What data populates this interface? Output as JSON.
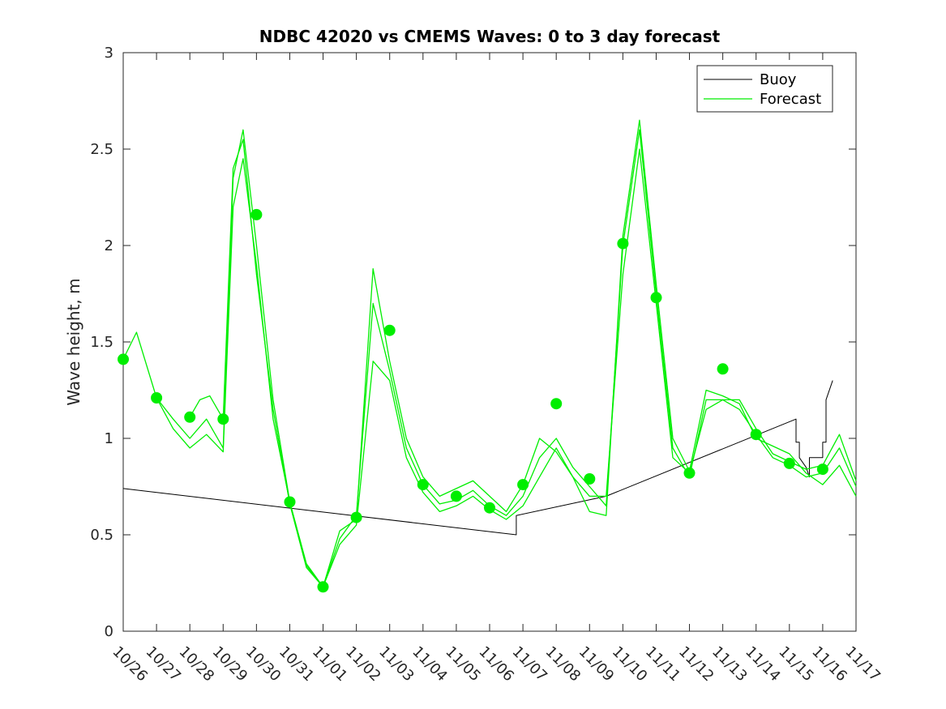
{
  "chart_data": {
    "type": "line",
    "title": "NDBC 42020 vs CMEMS Waves: 0 to 3 day forecast",
    "xlabel": "",
    "ylabel": "Wave height, m",
    "ylim": [
      0,
      3
    ],
    "xlim": [
      0,
      22
    ],
    "yticks": [
      0,
      0.5,
      1,
      1.5,
      2,
      2.5,
      3
    ],
    "ytick_labels": [
      "0",
      "0.5",
      "1",
      "1.5",
      "2",
      "2.5",
      "3"
    ],
    "xtick_labels": [
      "10/26",
      "10/27",
      "10/28",
      "10/29",
      "10/30",
      "10/31",
      "11/01",
      "11/02",
      "11/03",
      "11/04",
      "11/05",
      "11/06",
      "11/07",
      "11/08",
      "11/09",
      "11/10",
      "11/11",
      "11/12",
      "11/13",
      "11/14",
      "11/15",
      "11/16",
      "11/17"
    ],
    "legend": {
      "position": "top-right",
      "entries": [
        "Buoy",
        "Forecast"
      ]
    },
    "colors": {
      "buoy": "#000000",
      "forecast": "#00ee00",
      "markers": "#00ee00"
    },
    "series": [
      {
        "name": "Buoy",
        "x": [
          0,
          11.8,
          11.8,
          14.5,
          20.2,
          20.2,
          20.3,
          20.3,
          20.5,
          20.6,
          20.6,
          21.0,
          21.0,
          21.1,
          21.1,
          21.3
        ],
        "values": [
          0.74,
          0.5,
          0.6,
          0.7,
          1.1,
          0.98,
          0.98,
          0.9,
          0.85,
          0.8,
          0.9,
          0.9,
          0.98,
          0.98,
          1.2,
          1.3
        ]
      },
      {
        "name": "Forecast",
        "x": [
          0,
          0.4,
          1,
          1.5,
          2,
          2.5,
          3,
          3.3,
          3.6,
          4,
          4.5,
          5,
          5.5,
          6,
          6.5,
          7,
          7.5,
          8,
          8.5,
          9,
          9.5,
          10,
          10.5,
          11,
          11.5,
          12,
          12.5,
          13,
          13.5,
          14,
          14.5,
          15,
          15.5,
          16,
          16.5,
          17,
          17.5,
          18,
          18.5,
          19,
          19.5,
          20,
          20.5,
          21,
          21.5,
          22
        ],
        "values": [
          1.41,
          1.55,
          1.21,
          1.05,
          0.95,
          1.02,
          0.93,
          2.2,
          2.45,
          1.9,
          1.1,
          0.67,
          0.35,
          0.23,
          0.45,
          0.55,
          1.4,
          1.3,
          0.9,
          0.72,
          0.62,
          0.65,
          0.7,
          0.63,
          0.58,
          0.65,
          0.8,
          0.95,
          0.8,
          0.7,
          0.7,
          1.85,
          2.5,
          1.7,
          0.9,
          0.82,
          1.15,
          1.2,
          1.15,
          1.02,
          0.9,
          0.86,
          0.8,
          0.82,
          0.95,
          0.75
        ]
      },
      {
        "name": "Forecast run 2",
        "x": [
          1,
          1.5,
          2,
          2.5,
          3,
          3.3,
          3.6,
          4,
          4.5,
          5,
          5.5,
          6,
          6.5,
          7,
          7.5,
          8,
          8.5,
          9,
          9.5,
          10,
          10.5,
          11,
          11.5,
          12,
          12.5,
          13,
          13.5,
          14,
          14.5,
          15,
          15.5,
          16,
          16.5,
          17,
          17.5,
          18,
          18.5,
          19,
          19.5,
          20,
          20.5,
          21,
          21.5,
          22
        ],
        "values": [
          1.21,
          1.1,
          1.0,
          1.1,
          0.95,
          2.35,
          2.6,
          2.0,
          1.2,
          0.67,
          0.34,
          0.23,
          0.48,
          0.6,
          1.7,
          1.35,
          0.95,
          0.76,
          0.66,
          0.68,
          0.73,
          0.65,
          0.6,
          0.7,
          0.9,
          1.0,
          0.85,
          0.75,
          0.65,
          2.0,
          2.6,
          1.75,
          0.95,
          0.8,
          1.2,
          1.2,
          1.2,
          1.05,
          0.92,
          0.88,
          0.84,
          0.86,
          1.02,
          0.78
        ]
      },
      {
        "name": "Forecast run 3",
        "x": [
          2,
          2.3,
          2.6,
          3,
          3.3,
          3.6,
          4,
          4.5,
          5,
          5.5,
          6,
          6.5,
          7,
          7.5,
          8,
          8.5,
          9,
          9.5,
          10,
          10.5,
          11,
          11.5,
          12,
          12.5,
          13,
          13.5,
          14,
          14.5,
          15,
          15.5,
          16,
          16.5,
          17,
          17.5,
          18,
          18.5,
          19,
          19.5,
          20,
          20.5,
          21,
          21.5,
          22
        ],
        "values": [
          1.11,
          1.2,
          1.22,
          1.1,
          2.4,
          2.55,
          1.85,
          1.15,
          0.66,
          0.33,
          0.23,
          0.52,
          0.58,
          1.88,
          1.4,
          1.0,
          0.8,
          0.7,
          0.74,
          0.78,
          0.7,
          0.62,
          0.76,
          1.0,
          0.93,
          0.8,
          0.62,
          0.6,
          2.05,
          2.65,
          1.8,
          1.0,
          0.83,
          1.25,
          1.22,
          1.18,
          1.0,
          0.96,
          0.92,
          0.82,
          0.76,
          0.86,
          0.7
        ]
      }
    ],
    "markers": {
      "x": [
        0,
        1,
        2,
        3,
        4,
        5,
        6,
        7,
        8,
        9,
        10,
        11,
        12,
        13,
        14,
        15,
        16,
        17,
        18,
        19,
        20,
        21
      ],
      "values": [
        1.41,
        1.21,
        1.11,
        1.1,
        2.16,
        0.67,
        0.23,
        0.59,
        1.56,
        0.76,
        0.7,
        0.64,
        0.76,
        1.18,
        0.79,
        2.01,
        1.73,
        0.82,
        1.36,
        1.02,
        0.87,
        0.84
      ]
    }
  }
}
